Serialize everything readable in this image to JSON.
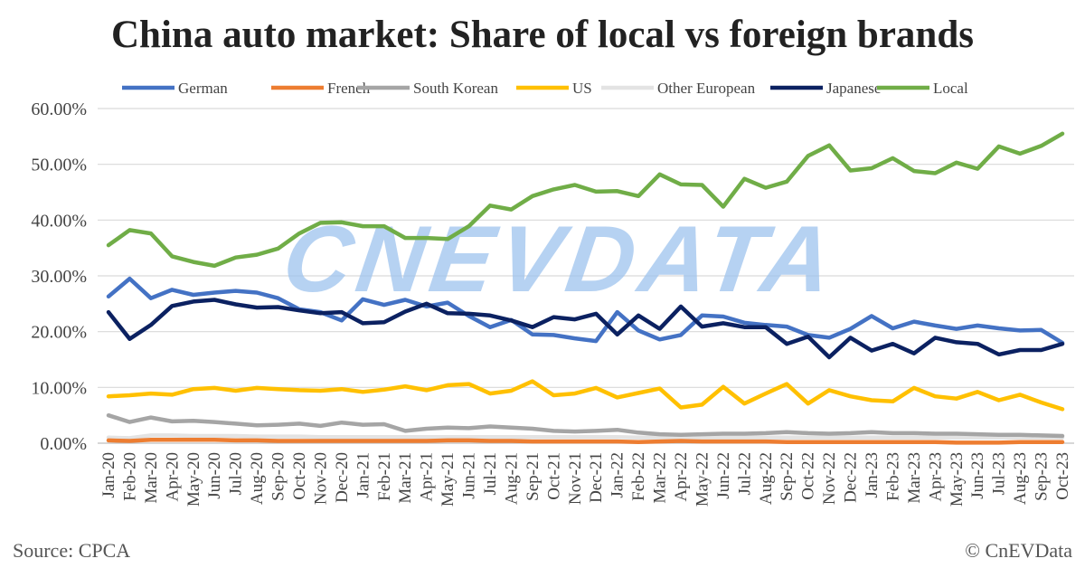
{
  "chart_data": {
    "type": "line",
    "title": "China auto market: Share of local vs foreign brands",
    "xlabel": "",
    "ylabel": "",
    "ylim": [
      0,
      60
    ],
    "yticks": [
      "0.00%",
      "10.00%",
      "20.00%",
      "30.00%",
      "40.00%",
      "50.00%",
      "60.00%"
    ],
    "grid": true,
    "legend_position": "top",
    "categories": [
      "Jan-20",
      "Feb-20",
      "Mar-20",
      "Apr-20",
      "May-20",
      "Jun-20",
      "Jul-20",
      "Aug-20",
      "Sep-20",
      "Oct-20",
      "Nov-20",
      "Dec-20",
      "Jan-21",
      "Feb-21",
      "Mar-21",
      "Apr-21",
      "May-21",
      "Jun-21",
      "Jul-21",
      "Aug-21",
      "Sep-21",
      "Oct-21",
      "Nov-21",
      "Dec-21",
      "Jan-22",
      "Feb-22",
      "Mar-22",
      "Apr-22",
      "May-22",
      "Jun-22",
      "Jul-22",
      "Aug-22",
      "Sep-22",
      "Oct-22",
      "Nov-22",
      "Dec-22",
      "Jan-23",
      "Feb-23",
      "Mar-23",
      "Apr-23",
      "May-23",
      "Jun-23",
      "Jul-23",
      "Aug-23",
      "Sep-23",
      "Oct-23"
    ],
    "series": [
      {
        "name": "German",
        "color": "#4472C4",
        "values": [
          26.3,
          29.5,
          26.0,
          27.5,
          26.6,
          27.0,
          27.3,
          27.0,
          26.0,
          24.0,
          23.5,
          22.0,
          25.8,
          24.8,
          25.7,
          24.5,
          25.2,
          22.8,
          20.8,
          22.1,
          19.5,
          19.4,
          18.8,
          18.3,
          23.5,
          20.2,
          18.6,
          19.4,
          22.9,
          22.7,
          21.6,
          21.2,
          20.9,
          19.4,
          18.9,
          20.5,
          22.8,
          20.6,
          21.8,
          21.1,
          20.5,
          21.1,
          20.6,
          20.2,
          20.3,
          18.0
        ]
      },
      {
        "name": "French",
        "color": "#ED7D31",
        "values": [
          0.5,
          0.4,
          0.6,
          0.6,
          0.6,
          0.6,
          0.5,
          0.5,
          0.4,
          0.4,
          0.4,
          0.4,
          0.4,
          0.4,
          0.4,
          0.4,
          0.5,
          0.5,
          0.4,
          0.4,
          0.3,
          0.3,
          0.3,
          0.3,
          0.3,
          0.2,
          0.3,
          0.4,
          0.3,
          0.3,
          0.3,
          0.3,
          0.2,
          0.2,
          0.2,
          0.2,
          0.2,
          0.2,
          0.2,
          0.2,
          0.1,
          0.1,
          0.1,
          0.2,
          0.2,
          0.2
        ]
      },
      {
        "name": "South Korean",
        "color": "#A5A5A5",
        "values": [
          5.0,
          3.8,
          4.6,
          3.9,
          4.0,
          3.8,
          3.5,
          3.2,
          3.3,
          3.5,
          3.1,
          3.7,
          3.3,
          3.4,
          2.2,
          2.6,
          2.8,
          2.7,
          3.0,
          2.8,
          2.6,
          2.2,
          2.1,
          2.2,
          2.4,
          1.9,
          1.6,
          1.5,
          1.6,
          1.7,
          1.7,
          1.8,
          2.0,
          1.8,
          1.7,
          1.8,
          2.0,
          1.8,
          1.8,
          1.7,
          1.7,
          1.6,
          1.5,
          1.5,
          1.4,
          1.3
        ]
      },
      {
        "name": "US",
        "color": "#FFC000",
        "values": [
          8.4,
          8.6,
          8.9,
          8.7,
          9.7,
          9.9,
          9.4,
          9.9,
          9.7,
          9.5,
          9.4,
          9.7,
          9.2,
          9.6,
          10.2,
          9.5,
          10.4,
          10.6,
          8.9,
          9.4,
          11.1,
          8.6,
          8.9,
          9.9,
          8.2,
          9.0,
          9.8,
          6.4,
          6.9,
          10.1,
          7.1,
          8.9,
          10.6,
          7.1,
          9.5,
          8.4,
          7.7,
          7.5,
          9.9,
          8.4,
          8.0,
          9.2,
          7.7,
          8.7,
          7.3,
          6.1
        ]
      },
      {
        "name": "Other European",
        "color": "#E3E3E3",
        "values": [
          1.0,
          0.9,
          1.4,
          1.4,
          1.3,
          1.3,
          1.3,
          1.2,
          1.2,
          1.2,
          1.1,
          1.1,
          1.1,
          1.1,
          1.1,
          1.1,
          1.1,
          1.1,
          1.1,
          1.1,
          1.1,
          1.1,
          1.1,
          1.1,
          1.1,
          1.0,
          1.0,
          1.0,
          1.0,
          1.0,
          1.0,
          1.0,
          1.0,
          1.0,
          1.0,
          1.0,
          1.0,
          1.0,
          1.0,
          1.0,
          1.0,
          1.0,
          1.0,
          1.0,
          1.0,
          1.0
        ]
      },
      {
        "name": "Japanese",
        "color": "#0B2161",
        "values": [
          23.5,
          18.7,
          21.2,
          24.6,
          25.4,
          25.7,
          24.9,
          24.3,
          24.4,
          23.8,
          23.3,
          23.5,
          21.5,
          21.7,
          23.6,
          25.0,
          23.3,
          23.2,
          22.9,
          22.0,
          20.8,
          22.6,
          22.2,
          23.2,
          19.5,
          22.9,
          20.5,
          24.5,
          20.9,
          21.5,
          20.8,
          20.8,
          17.8,
          19.1,
          15.4,
          18.9,
          16.6,
          17.8,
          16.1,
          18.9,
          18.1,
          17.8,
          15.9,
          16.7,
          16.7,
          17.8
        ]
      },
      {
        "name": "Local",
        "color": "#70AD47",
        "values": [
          35.5,
          38.2,
          37.6,
          33.5,
          32.5,
          31.8,
          33.3,
          33.8,
          34.9,
          37.6,
          39.5,
          39.6,
          38.9,
          38.9,
          36.8,
          36.8,
          36.6,
          38.9,
          42.6,
          41.9,
          44.3,
          45.5,
          46.3,
          45.1,
          45.2,
          44.3,
          48.2,
          46.4,
          46.3,
          42.4,
          47.4,
          45.8,
          46.9,
          51.5,
          53.4,
          48.9,
          49.3,
          51.1,
          48.8,
          48.4,
          50.3,
          49.2,
          53.2,
          51.9,
          53.3,
          55.5
        ]
      }
    ]
  },
  "watermark": "CNEVDATA",
  "source": "Source: CPCA",
  "copyright": "© CnEVData"
}
